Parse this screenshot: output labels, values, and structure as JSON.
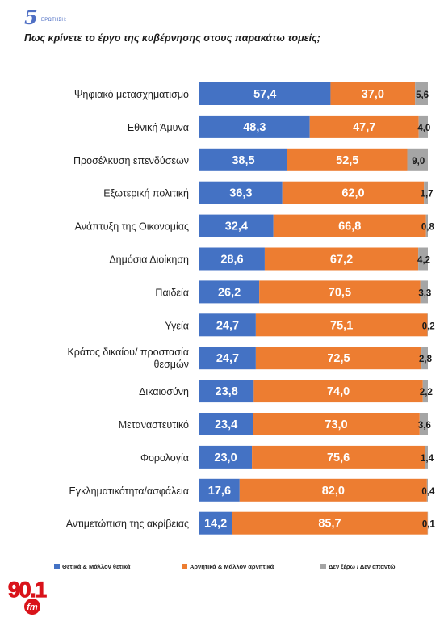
{
  "header": {
    "number": "5",
    "label": "ΕΡΩΤΗΣΗ:",
    "title": "Πως κρίνετε το έργο της κυβέρνησης στους παρακάτω τομείς;"
  },
  "logo": {
    "main": "90.1",
    "sub": "fm"
  },
  "chart_data": {
    "type": "bar",
    "stacked": true,
    "orientation": "horizontal",
    "title": "Πως κρίνετε το έργο της κυβέρνησης στους παρακάτω τομείς;",
    "xlim": [
      0,
      100
    ],
    "legend_position": "bottom",
    "categories": [
      "Ψηφιακό μετασχηματισμό",
      "Εθνική Άμυνα",
      "Προσέλκυση επενδύσεων",
      "Εξωτερική πολιτική",
      "Ανάπτυξη της Οικονομίας",
      "Δημόσια Διοίκηση",
      "Παιδεία",
      "Υγεία",
      "Κράτος δικαίου/ προστασία θεσμών",
      "Δικαιοσύνη",
      "Μεταναστευτικό",
      "Φορολογία",
      "Εγκληματικότητα/ασφάλεια",
      "Αντιμετώπιση της ακρίβειας"
    ],
    "labels": [
      [
        "Ψηφιακό μετασχηματισμό"
      ],
      [
        "Εθνική Άμυνα"
      ],
      [
        "Προσέλκυση επενδύσεων"
      ],
      [
        "Εξωτερική πολιτική"
      ],
      [
        "Ανάπτυξη της Οικονομίας"
      ],
      [
        "Δημόσια Διοίκηση"
      ],
      [
        "Παιδεία"
      ],
      [
        "Υγεία"
      ],
      [
        "Κράτος δικαίου/ προστασία",
        "θεσμών"
      ],
      [
        "Δικαιοσύνη"
      ],
      [
        "Μεταναστευτικό"
      ],
      [
        "Φορολογία"
      ],
      [
        "Εγκληματικότητα/ασφάλεια"
      ],
      [
        "Αντιμετώπιση της ακρίβειας"
      ]
    ],
    "series": [
      {
        "name": "Θετικά & Μάλλον θετικά",
        "color": "#4472c4",
        "values": [
          57.4,
          48.3,
          38.5,
          36.3,
          32.4,
          28.6,
          26.2,
          24.7,
          24.7,
          23.8,
          23.4,
          23.0,
          17.6,
          14.2
        ],
        "labels": [
          "57,4",
          "48,3",
          "38,5",
          "36,3",
          "32,4",
          "28,6",
          "26,2",
          "24,7",
          "24,7",
          "23,8",
          "23,4",
          "23,0",
          "17,6",
          "14,2"
        ]
      },
      {
        "name": "Αρνητικά & Μάλλον αρνητικά",
        "color": "#ed7d31",
        "values": [
          37.0,
          47.7,
          52.5,
          62.0,
          66.8,
          67.2,
          70.5,
          75.1,
          72.5,
          74.0,
          73.0,
          75.6,
          82.0,
          85.7
        ],
        "labels": [
          "37,0",
          "47,7",
          "52,5",
          "62,0",
          "66,8",
          "67,2",
          "70,5",
          "75,1",
          "72,5",
          "74,0",
          "73,0",
          "75,6",
          "82,0",
          "85,7"
        ]
      },
      {
        "name": "Δεν ξέρω / Δεν απαντώ",
        "color": "#a5a5a5",
        "values": [
          5.6,
          4.0,
          9.0,
          1.7,
          0.8,
          4.2,
          3.3,
          0.2,
          2.8,
          2.2,
          3.6,
          1.4,
          0.4,
          0.1
        ],
        "labels": [
          "5,6",
          "4,0",
          "9,0",
          "1,7",
          "0,8",
          "4,2",
          "3,3",
          "0,2",
          "2,8",
          "2,2",
          "3,6",
          "1,4",
          "0,4",
          "0,1"
        ]
      }
    ]
  }
}
